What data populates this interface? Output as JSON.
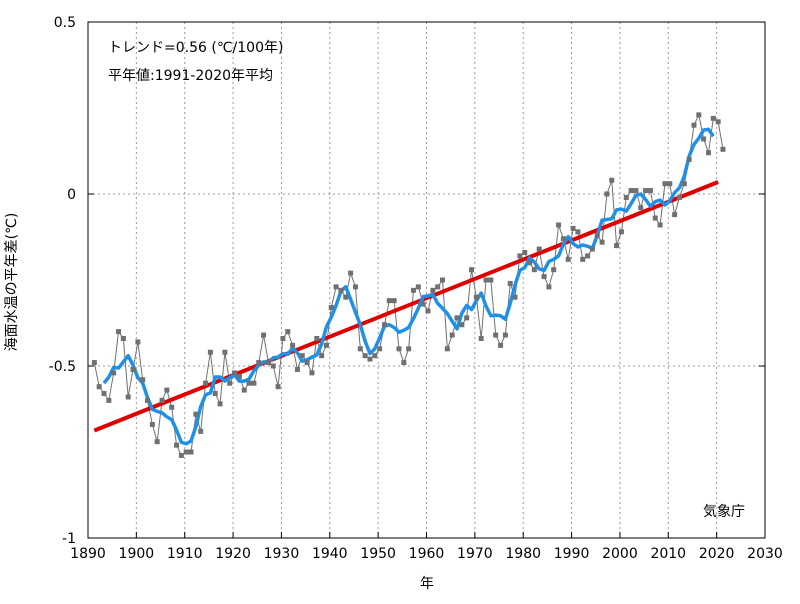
{
  "chart_data": {
    "type": "line",
    "xlabel": "年",
    "ylabel": "海面水温の平年差(℃)",
    "xlim": [
      1890,
      2030
    ],
    "ylim": [
      -1,
      0.5
    ],
    "xticks": [
      1890,
      1900,
      1910,
      1920,
      1930,
      1940,
      1950,
      1960,
      1970,
      1980,
      1990,
      2000,
      2010,
      2020,
      2030
    ],
    "yticks": [
      0.5,
      0,
      -0.5,
      -1
    ],
    "ytick_labels": [
      "0.5",
      "0",
      "-0.5",
      "-1"
    ],
    "grid": true,
    "annotations": {
      "trend": "トレンド=0.56 (℃/100年)",
      "baseline": "平年値:1991-2020年平均",
      "source": "気象庁"
    },
    "colors": {
      "annual": "#707070",
      "running_mean": "#1e90e8",
      "trend": "#e00000"
    },
    "annual": {
      "start_year": 1891,
      "values": [
        -0.49,
        -0.56,
        -0.58,
        -0.6,
        -0.52,
        -0.4,
        -0.42,
        -0.59,
        -0.51,
        -0.43,
        -0.54,
        -0.6,
        -0.67,
        -0.72,
        -0.6,
        -0.57,
        -0.62,
        -0.73,
        -0.76,
        -0.75,
        -0.75,
        -0.64,
        -0.69,
        -0.55,
        -0.46,
        -0.58,
        -0.61,
        -0.46,
        -0.55,
        -0.52,
        -0.53,
        -0.57,
        -0.55,
        -0.55,
        -0.49,
        -0.41,
        -0.49,
        -0.5,
        -0.56,
        -0.42,
        -0.4,
        -0.44,
        -0.51,
        -0.47,
        -0.49,
        -0.52,
        -0.42,
        -0.47,
        -0.44,
        -0.33,
        -0.27,
        -0.28,
        -0.3,
        -0.23,
        -0.27,
        -0.45,
        -0.47,
        -0.48,
        -0.47,
        -0.45,
        -0.38,
        -0.31,
        -0.31,
        -0.45,
        -0.49,
        -0.45,
        -0.28,
        -0.27,
        -0.32,
        -0.34,
        -0.28,
        -0.27,
        -0.25,
        -0.45,
        -0.41,
        -0.36,
        -0.38,
        -0.36,
        -0.22,
        -0.3,
        -0.42,
        -0.25,
        -0.25,
        -0.41,
        -0.44,
        -0.41,
        -0.26,
        -0.3,
        -0.18,
        -0.17,
        -0.2,
        -0.22,
        -0.16,
        -0.24,
        -0.27,
        -0.22,
        -0.09,
        -0.13,
        -0.19,
        -0.1,
        -0.11,
        -0.19,
        -0.18,
        -0.16,
        -0.12,
        -0.14,
        0.0,
        0.04,
        -0.15,
        -0.11,
        -0.01,
        0.01,
        0.01,
        -0.04,
        0.01,
        0.01,
        -0.07,
        -0.09,
        0.03,
        0.03,
        -0.06,
        -0.01,
        0.03,
        0.1,
        0.2,
        0.23,
        0.16,
        0.12,
        0.22,
        0.21,
        0.13
      ]
    },
    "running_mean_window": 5,
    "trend": {
      "rate_per_100yr": 0.56,
      "from_year": 1891,
      "to_year": 2020,
      "value_at_end": 0.035
    }
  }
}
